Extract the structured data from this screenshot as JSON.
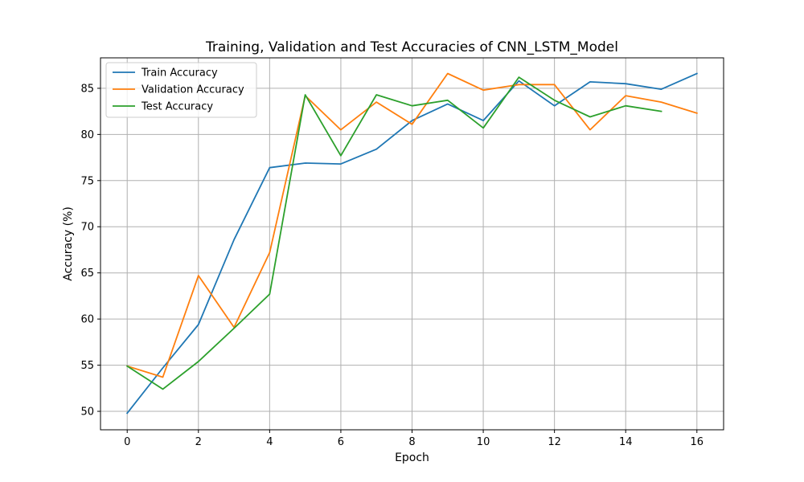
{
  "chart_data": {
    "type": "line",
    "title": "Training, Validation and Test Accuracies of CNN_LSTM_Model",
    "xlabel": "Epoch",
    "ylabel": "Accuracy (%)",
    "xlim": [
      -0.75,
      16.75
    ],
    "ylim": [
      48,
      88.3
    ],
    "x_ticks": [
      0,
      2,
      4,
      6,
      8,
      10,
      12,
      14,
      16
    ],
    "y_ticks": [
      50,
      55,
      60,
      65,
      70,
      75,
      80,
      85
    ],
    "grid": true,
    "legend_position": "top-left",
    "series": [
      {
        "name": "Train Accuracy",
        "color": "#1f77b4",
        "x": [
          0,
          1,
          2,
          3,
          4,
          5,
          6,
          7,
          8,
          9,
          10,
          11,
          12,
          13,
          14,
          15,
          16
        ],
        "values": [
          49.8,
          54.7,
          59.4,
          68.6,
          76.4,
          76.9,
          76.8,
          78.4,
          81.5,
          83.3,
          81.5,
          85.8,
          83.1,
          85.7,
          85.5,
          84.9,
          86.6
        ]
      },
      {
        "name": "Validation Accuracy",
        "color": "#ff7f0e",
        "x": [
          0,
          1,
          2,
          3,
          4,
          5,
          6,
          7,
          8,
          9,
          10,
          11,
          12,
          13,
          14,
          15,
          16
        ],
        "values": [
          54.9,
          53.7,
          64.7,
          59.1,
          67.2,
          84.2,
          80.5,
          83.5,
          81.1,
          86.6,
          84.8,
          85.4,
          85.4,
          80.5,
          84.2,
          83.5,
          82.3
        ]
      },
      {
        "name": "Test Accuracy",
        "color": "#2ca02c",
        "x": [
          0,
          1,
          2,
          3,
          4,
          5,
          6,
          7,
          8,
          9,
          10,
          11,
          12,
          13,
          14,
          15
        ],
        "values": [
          54.9,
          52.4,
          55.4,
          59.0,
          62.7,
          84.3,
          77.7,
          84.3,
          83.1,
          83.7,
          80.7,
          86.2,
          83.7,
          81.9,
          83.1,
          82.5
        ]
      }
    ]
  }
}
